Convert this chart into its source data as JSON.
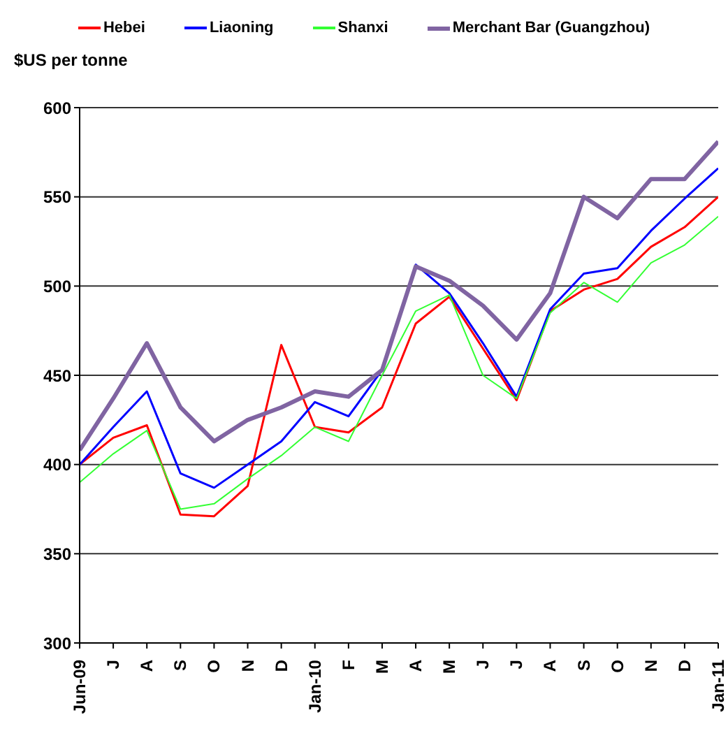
{
  "chart_data": {
    "type": "line",
    "ylabel": "$US per tonne",
    "categories": [
      "Jun-09",
      "J",
      "A",
      "S",
      "O",
      "N",
      "D",
      "Jan-10",
      "F",
      "M",
      "A",
      "M",
      "J",
      "J",
      "A",
      "S",
      "O",
      "N",
      "D",
      "Jan-11"
    ],
    "series": [
      {
        "name": "Hebei",
        "color": "#ff0000",
        "values": [
          400,
          415,
          422,
          372,
          371,
          388,
          467,
          421,
          418,
          432,
          479,
          494,
          465,
          436,
          486,
          498,
          504,
          522,
          533,
          550
        ]
      },
      {
        "name": "Liaoning",
        "color": "#0000ff",
        "values": [
          400,
          421,
          441,
          395,
          387,
          400,
          413,
          435,
          427,
          453,
          512,
          496,
          468,
          438,
          487,
          507,
          510,
          531,
          549,
          566
        ]
      },
      {
        "name": "Shanxi",
        "color": "#33ff33",
        "values": [
          390,
          406,
          419,
          375,
          378,
          392,
          405,
          421,
          413,
          450,
          486,
          495,
          450,
          437,
          485,
          502,
          491,
          513,
          523,
          539
        ]
      },
      {
        "name": "Merchant Bar (Guangzhou)",
        "color": "#8064a2",
        "values": [
          408,
          437,
          468,
          432,
          413,
          425,
          432,
          441,
          438,
          453,
          511,
          503,
          489,
          470,
          496,
          550,
          538,
          560,
          560,
          581
        ]
      }
    ],
    "ylim": [
      300,
      600
    ],
    "yticks": [
      300,
      350,
      400,
      450,
      500,
      550,
      600
    ],
    "grid": "y",
    "legend": "top",
    "marker": "none",
    "line_style": "solid"
  }
}
